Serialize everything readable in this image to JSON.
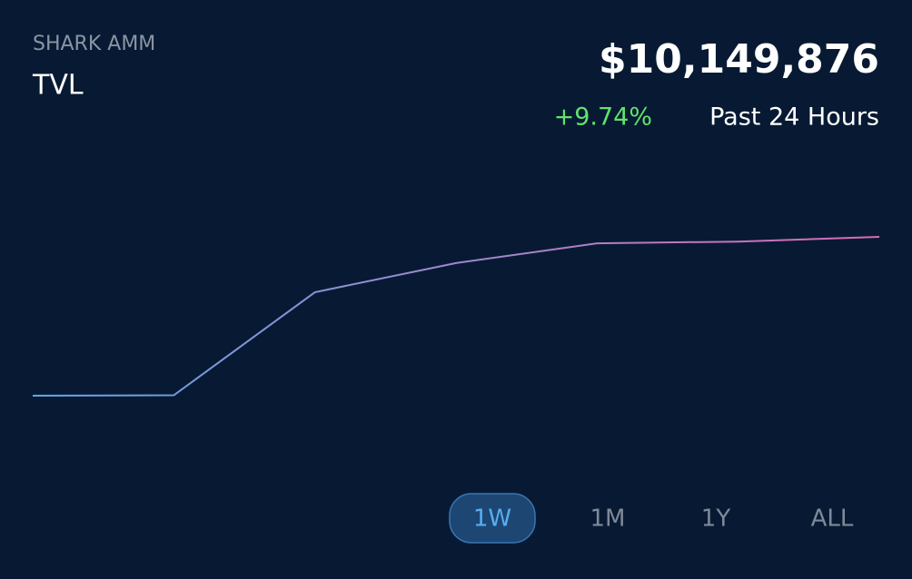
{
  "header": {
    "subtitle": "SHARK AMM",
    "title": "TVL",
    "value": "$10,149,876",
    "change": "+9.74%",
    "period": "Past 24 Hours"
  },
  "chart_data": {
    "type": "line",
    "categories": [
      null,
      null,
      null,
      null,
      null,
      null,
      null
    ],
    "series": [
      {
        "values": [
          6.45,
          6.46,
          8.86,
          9.54,
          10.0,
          10.04,
          10.15
        ],
        "color": [
          "#62a6e6",
          "#d96ab6"
        ]
      }
    ]
  },
  "ranges": {
    "options": [
      "1W",
      "1M",
      "1Y",
      "ALL"
    ],
    "selected": "1W"
  }
}
